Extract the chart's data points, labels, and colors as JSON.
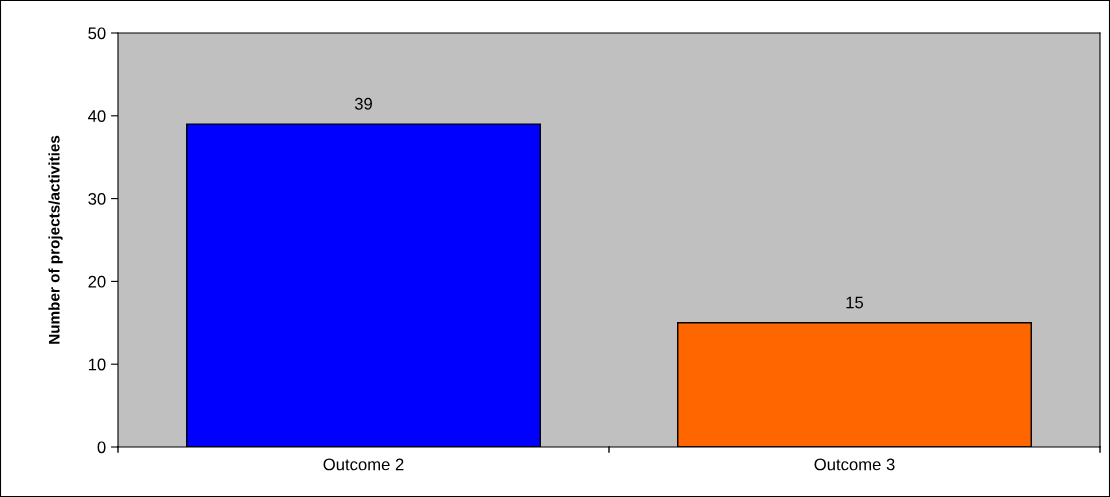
{
  "chart_data": {
    "type": "bar",
    "ylabel": "Number of projects/activities",
    "categories": [
      "Outcome 2",
      "Outcome 3"
    ],
    "values": [
      39,
      15
    ],
    "colors": [
      "#0000ff",
      "#ff6600"
    ],
    "ylim": [
      0,
      50
    ],
    "yticks": [
      0,
      10,
      20,
      30,
      40,
      50
    ],
    "grid": false,
    "legend": false,
    "data_labels": true
  }
}
